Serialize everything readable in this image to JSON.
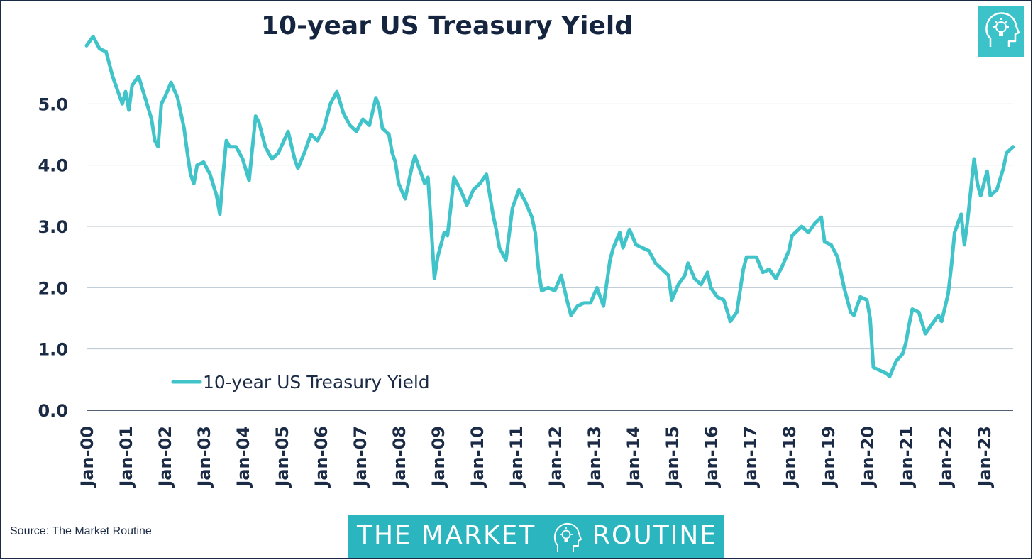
{
  "chart_data": {
    "type": "line",
    "title": "10-year US Treasury Yield",
    "xlabel": "",
    "ylabel": "",
    "ylim": [
      0,
      6
    ],
    "xlim": [
      "2000-01",
      "2023-10"
    ],
    "y_ticks": [
      "0.0",
      "1.0",
      "2.0",
      "3.0",
      "4.0",
      "5.0"
    ],
    "x_ticks": [
      "Jan-00",
      "Jan-01",
      "Jan-02",
      "Jan-03",
      "Jan-04",
      "Jan-05",
      "Jan-06",
      "Jan-07",
      "Jan-08",
      "Jan-09",
      "Jan-10",
      "Jan-11",
      "Jan-12",
      "Jan-13",
      "Jan-14",
      "Jan-15",
      "Jan-16",
      "Jan-17",
      "Jan-18",
      "Jan-19",
      "Jan-20",
      "Jan-21",
      "Jan-22",
      "Jan-23"
    ],
    "grid": "horizontal",
    "legend_position": "bottom-left",
    "line_color": "#40c4c9",
    "series": [
      {
        "name": "10-year US Treasury Yield",
        "points": [
          [
            "2000-01",
            5.95
          ],
          [
            "2000-03",
            6.1
          ],
          [
            "2000-05",
            5.9
          ],
          [
            "2000-07",
            5.85
          ],
          [
            "2000-09",
            5.45
          ],
          [
            "2000-10",
            5.3
          ],
          [
            "2000-12",
            5.0
          ],
          [
            "2001-01",
            5.2
          ],
          [
            "2001-02",
            4.9
          ],
          [
            "2001-03",
            5.3
          ],
          [
            "2001-05",
            5.45
          ],
          [
            "2001-07",
            5.1
          ],
          [
            "2001-09",
            4.75
          ],
          [
            "2001-10",
            4.4
          ],
          [
            "2001-11",
            4.3
          ],
          [
            "2001-12",
            5.0
          ],
          [
            "2002-01",
            5.1
          ],
          [
            "2002-03",
            5.35
          ],
          [
            "2002-05",
            5.1
          ],
          [
            "2002-07",
            4.6
          ],
          [
            "2002-08",
            4.2
          ],
          [
            "2002-09",
            3.85
          ],
          [
            "2002-10",
            3.7
          ],
          [
            "2002-11",
            4.0
          ],
          [
            "2003-01",
            4.05
          ],
          [
            "2003-03",
            3.85
          ],
          [
            "2003-05",
            3.5
          ],
          [
            "2003-06",
            3.2
          ],
          [
            "2003-07",
            3.85
          ],
          [
            "2003-08",
            4.4
          ],
          [
            "2003-09",
            4.3
          ],
          [
            "2003-11",
            4.3
          ],
          [
            "2004-01",
            4.1
          ],
          [
            "2004-03",
            3.75
          ],
          [
            "2004-05",
            4.8
          ],
          [
            "2004-06",
            4.7
          ],
          [
            "2004-08",
            4.3
          ],
          [
            "2004-10",
            4.1
          ],
          [
            "2004-12",
            4.2
          ],
          [
            "2005-03",
            4.55
          ],
          [
            "2005-05",
            4.1
          ],
          [
            "2005-06",
            3.95
          ],
          [
            "2005-08",
            4.2
          ],
          [
            "2005-10",
            4.5
          ],
          [
            "2005-12",
            4.4
          ],
          [
            "2006-02",
            4.6
          ],
          [
            "2006-04",
            5.0
          ],
          [
            "2006-06",
            5.2
          ],
          [
            "2006-08",
            4.85
          ],
          [
            "2006-10",
            4.65
          ],
          [
            "2006-12",
            4.55
          ],
          [
            "2007-02",
            4.75
          ],
          [
            "2007-04",
            4.65
          ],
          [
            "2007-06",
            5.1
          ],
          [
            "2007-07",
            4.95
          ],
          [
            "2007-08",
            4.6
          ],
          [
            "2007-10",
            4.5
          ],
          [
            "2007-11",
            4.2
          ],
          [
            "2007-12",
            4.05
          ],
          [
            "2008-01",
            3.7
          ],
          [
            "2008-03",
            3.45
          ],
          [
            "2008-05",
            3.95
          ],
          [
            "2008-06",
            4.15
          ],
          [
            "2008-08",
            3.85
          ],
          [
            "2008-09",
            3.7
          ],
          [
            "2008-10",
            3.8
          ],
          [
            "2008-11",
            3.0
          ],
          [
            "2008-12",
            2.15
          ],
          [
            "2009-01",
            2.5
          ],
          [
            "2009-03",
            2.9
          ],
          [
            "2009-04",
            2.85
          ],
          [
            "2009-05",
            3.3
          ],
          [
            "2009-06",
            3.8
          ],
          [
            "2009-08",
            3.6
          ],
          [
            "2009-10",
            3.35
          ],
          [
            "2009-12",
            3.6
          ],
          [
            "2010-02",
            3.7
          ],
          [
            "2010-04",
            3.85
          ],
          [
            "2010-06",
            3.2
          ],
          [
            "2010-07",
            2.95
          ],
          [
            "2010-08",
            2.65
          ],
          [
            "2010-10",
            2.45
          ],
          [
            "2010-12",
            3.3
          ],
          [
            "2011-02",
            3.6
          ],
          [
            "2011-04",
            3.4
          ],
          [
            "2011-06",
            3.15
          ],
          [
            "2011-07",
            2.9
          ],
          [
            "2011-08",
            2.3
          ],
          [
            "2011-09",
            1.95
          ],
          [
            "2011-11",
            2.0
          ],
          [
            "2012-01",
            1.95
          ],
          [
            "2012-03",
            2.2
          ],
          [
            "2012-05",
            1.75
          ],
          [
            "2012-06",
            1.55
          ],
          [
            "2012-08",
            1.7
          ],
          [
            "2012-10",
            1.75
          ],
          [
            "2012-12",
            1.75
          ],
          [
            "2013-02",
            2.0
          ],
          [
            "2013-04",
            1.7
          ],
          [
            "2013-06",
            2.45
          ],
          [
            "2013-07",
            2.65
          ],
          [
            "2013-09",
            2.9
          ],
          [
            "2013-10",
            2.65
          ],
          [
            "2013-12",
            2.95
          ],
          [
            "2014-02",
            2.7
          ],
          [
            "2014-04",
            2.65
          ],
          [
            "2014-06",
            2.6
          ],
          [
            "2014-08",
            2.4
          ],
          [
            "2014-10",
            2.3
          ],
          [
            "2014-12",
            2.2
          ],
          [
            "2015-01",
            1.8
          ],
          [
            "2015-03",
            2.05
          ],
          [
            "2015-05",
            2.2
          ],
          [
            "2015-06",
            2.4
          ],
          [
            "2015-08",
            2.15
          ],
          [
            "2015-10",
            2.05
          ],
          [
            "2015-12",
            2.25
          ],
          [
            "2016-01",
            2.0
          ],
          [
            "2016-03",
            1.85
          ],
          [
            "2016-05",
            1.8
          ],
          [
            "2016-07",
            1.45
          ],
          [
            "2016-09",
            1.6
          ],
          [
            "2016-11",
            2.3
          ],
          [
            "2016-12",
            2.5
          ],
          [
            "2017-03",
            2.5
          ],
          [
            "2017-05",
            2.25
          ],
          [
            "2017-07",
            2.3
          ],
          [
            "2017-09",
            2.15
          ],
          [
            "2017-11",
            2.35
          ],
          [
            "2018-01",
            2.6
          ],
          [
            "2018-02",
            2.85
          ],
          [
            "2018-05",
            3.0
          ],
          [
            "2018-07",
            2.9
          ],
          [
            "2018-09",
            3.05
          ],
          [
            "2018-11",
            3.15
          ],
          [
            "2018-12",
            2.75
          ],
          [
            "2019-02",
            2.7
          ],
          [
            "2019-04",
            2.5
          ],
          [
            "2019-06",
            2.0
          ],
          [
            "2019-08",
            1.6
          ],
          [
            "2019-09",
            1.55
          ],
          [
            "2019-11",
            1.85
          ],
          [
            "2020-01",
            1.8
          ],
          [
            "2020-02",
            1.5
          ],
          [
            "2020-03",
            0.7
          ],
          [
            "2020-05",
            0.65
          ],
          [
            "2020-07",
            0.6
          ],
          [
            "2020-08",
            0.55
          ],
          [
            "2020-10",
            0.8
          ],
          [
            "2020-12",
            0.92
          ],
          [
            "2021-01",
            1.1
          ],
          [
            "2021-02",
            1.4
          ],
          [
            "2021-03",
            1.65
          ],
          [
            "2021-05",
            1.6
          ],
          [
            "2021-07",
            1.25
          ],
          [
            "2021-09",
            1.4
          ],
          [
            "2021-11",
            1.55
          ],
          [
            "2021-12",
            1.45
          ],
          [
            "2022-02",
            1.9
          ],
          [
            "2022-03",
            2.35
          ],
          [
            "2022-04",
            2.9
          ],
          [
            "2022-06",
            3.2
          ],
          [
            "2022-07",
            2.7
          ],
          [
            "2022-08",
            3.1
          ],
          [
            "2022-10",
            4.1
          ],
          [
            "2022-11",
            3.7
          ],
          [
            "2022-12",
            3.5
          ],
          [
            "2023-02",
            3.9
          ],
          [
            "2023-03",
            3.5
          ],
          [
            "2023-05",
            3.6
          ],
          [
            "2023-07",
            3.95
          ],
          [
            "2023-08",
            4.2
          ],
          [
            "2023-10",
            4.3
          ]
        ]
      }
    ]
  },
  "source_text": "Source: The Market Routine",
  "brand": {
    "left": "THE MARKET",
    "right": "ROUTINE",
    "logo_icon": "lightbulb-head-icon"
  },
  "corner_logo_icon": "lightbulb-head-icon",
  "colors": {
    "title": "#15253f",
    "line": "#40c4c9",
    "axis": "#1b2b45",
    "grid": "#b8c7d3",
    "brand_bg": "#2ab5bf"
  }
}
